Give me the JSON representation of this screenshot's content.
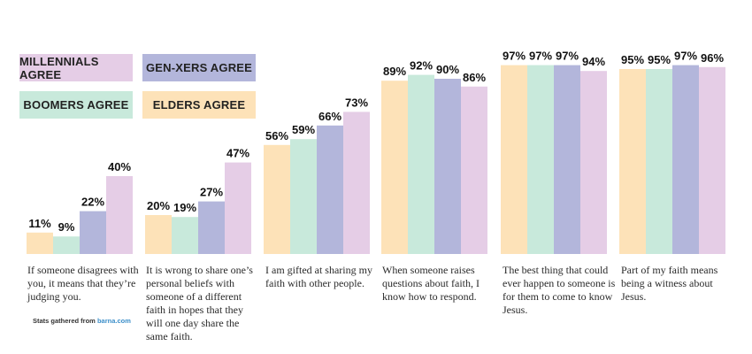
{
  "legend": [
    {
      "label": "MILLENNIALS AGREE",
      "color": "#E5CDE6"
    },
    {
      "label": "GEN-XERS AGREE",
      "color": "#B3B6DB"
    },
    {
      "label": "BOOMERS AGREE",
      "color": "#C8E9DB"
    },
    {
      "label": "ELDERS AGREE",
      "color": "#FDE2B8"
    }
  ],
  "source": {
    "prefix": "Stats gathered from",
    "brand": "barna.com"
  },
  "chart_data": {
    "type": "bar",
    "title": "",
    "xlabel": "",
    "ylabel": "",
    "ylim": [
      0,
      100
    ],
    "categories": [
      "If someone disagrees with you, it means that they’re judging you.",
      "It is wrong to share one’s personal beliefs with someone of a different faith in hopes that they will one day share the same faith.",
      "I am gifted at sharing my faith with other people.",
      "When someone raises questions about faith, I know how to respond.",
      "The best thing that could ever happen to someone is for them to come to know Jesus.",
      "Part of my faith means being a witness about Jesus."
    ],
    "series": [
      {
        "name": "Elders Agree",
        "color": "#FDE2B8",
        "values": [
          11,
          20,
          56,
          89,
          97,
          95
        ]
      },
      {
        "name": "Boomers Agree",
        "color": "#C8E9DB",
        "values": [
          9,
          19,
          59,
          92,
          97,
          95
        ]
      },
      {
        "name": "Gen-Xers Agree",
        "color": "#B3B6DB",
        "values": [
          22,
          27,
          66,
          90,
          97,
          97
        ]
      },
      {
        "name": "Millennials Agree",
        "color": "#E5CDE6",
        "values": [
          40,
          47,
          73,
          86,
          94,
          96
        ]
      }
    ],
    "value_suffix": "%"
  }
}
